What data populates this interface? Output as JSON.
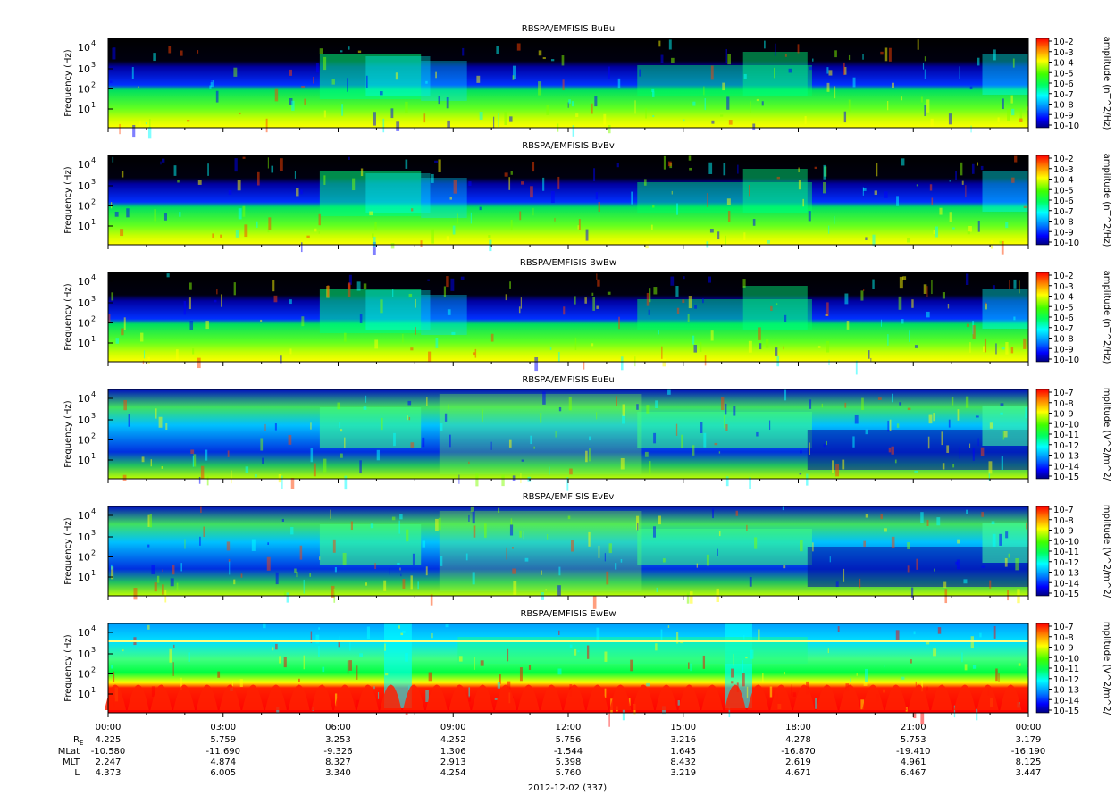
{
  "chart_data": {
    "type": "heatmap",
    "date_label": "2012-12-02 (337)",
    "x_ticks": [
      "00:00",
      "03:00",
      "06:00",
      "09:00",
      "12:00",
      "15:00",
      "18:00",
      "21:00",
      "00:00"
    ],
    "ephemeris": {
      "rows": [
        {
          "label": "R",
          "label_sub": "E",
          "values": [
            "4.225",
            "5.759",
            "3.253",
            "4.252",
            "5.756",
            "3.216",
            "4.278",
            "5.753",
            "3.179"
          ]
        },
        {
          "label": "MLat",
          "label_sub": "",
          "values": [
            "-10.580",
            "-11.690",
            "-9.326",
            "1.306",
            "-1.544",
            "1.645",
            "-16.870",
            "-19.410",
            "-16.190"
          ]
        },
        {
          "label": "MLT",
          "label_sub": "",
          "values": [
            "2.247",
            "4.874",
            "8.327",
            "2.913",
            "5.398",
            "8.432",
            "2.619",
            "4.961",
            "8.125"
          ]
        },
        {
          "label": "L",
          "label_sub": "",
          "values": [
            "4.373",
            "6.005",
            "3.340",
            "4.254",
            "5.760",
            "3.219",
            "4.671",
            "6.467",
            "3.447"
          ]
        }
      ]
    },
    "panels": [
      {
        "title": "RBSPA/EMFISIS  BuBu",
        "ylabel": "Frequency (Hz)",
        "y_ticks": [
          {
            "base": "10",
            "exp": "1"
          },
          {
            "base": "10",
            "exp": "2"
          },
          {
            "base": "10",
            "exp": "3"
          },
          {
            "base": "10",
            "exp": "4"
          }
        ],
        "cbar_label": "amplitude (nT^2/Hz)",
        "cbar_ticks": [
          "10-2",
          "10-3",
          "10-4",
          "10-5",
          "10-6",
          "10-7",
          "10-8",
          "10-9",
          "10-10"
        ]
      },
      {
        "title": "RBSPA/EMFISIS  BvBv",
        "ylabel": "Frequency (Hz)",
        "y_ticks": [
          {
            "base": "10",
            "exp": "1"
          },
          {
            "base": "10",
            "exp": "2"
          },
          {
            "base": "10",
            "exp": "3"
          },
          {
            "base": "10",
            "exp": "4"
          }
        ],
        "cbar_label": "amplitude (nT^2/Hz)",
        "cbar_ticks": [
          "10-2",
          "10-3",
          "10-4",
          "10-5",
          "10-6",
          "10-7",
          "10-8",
          "10-9",
          "10-10"
        ]
      },
      {
        "title": "RBSPA/EMFISIS  BwBw",
        "ylabel": "Frequency (Hz)",
        "y_ticks": [
          {
            "base": "10",
            "exp": "1"
          },
          {
            "base": "10",
            "exp": "2"
          },
          {
            "base": "10",
            "exp": "3"
          },
          {
            "base": "10",
            "exp": "4"
          }
        ],
        "cbar_label": "amplitude (nT^2/Hz)",
        "cbar_ticks": [
          "10-2",
          "10-3",
          "10-4",
          "10-5",
          "10-6",
          "10-7",
          "10-8",
          "10-9",
          "10-10"
        ]
      },
      {
        "title": "RBSPA/EMFISIS  EuEu",
        "ylabel": "Frequency (Hz)",
        "y_ticks": [
          {
            "base": "10",
            "exp": "1"
          },
          {
            "base": "10",
            "exp": "2"
          },
          {
            "base": "10",
            "exp": "3"
          },
          {
            "base": "10",
            "exp": "4"
          }
        ],
        "cbar_label": "mplitude (V^2/m^2/",
        "cbar_ticks": [
          "10-7",
          "10-8",
          "10-9",
          "10-10",
          "10-11",
          "10-12",
          "10-13",
          "10-14",
          "10-15"
        ]
      },
      {
        "title": "RBSPA/EMFISIS  EvEv",
        "ylabel": "Frequency (Hz)",
        "y_ticks": [
          {
            "base": "10",
            "exp": "1"
          },
          {
            "base": "10",
            "exp": "2"
          },
          {
            "base": "10",
            "exp": "3"
          },
          {
            "base": "10",
            "exp": "4"
          }
        ],
        "cbar_label": "mplitude (V^2/m^2/",
        "cbar_ticks": [
          "10-7",
          "10-8",
          "10-9",
          "10-10",
          "10-11",
          "10-12",
          "10-13",
          "10-14",
          "10-15"
        ]
      },
      {
        "title": "RBSPA/EMFISIS  EwEw",
        "ylabel": "Frequency (Hz)",
        "y_ticks": [
          {
            "base": "10",
            "exp": "1"
          },
          {
            "base": "10",
            "exp": "2"
          },
          {
            "base": "10",
            "exp": "3"
          },
          {
            "base": "10",
            "exp": "4"
          }
        ],
        "cbar_label": "mplitude (V^2/m^2/",
        "cbar_ticks": [
          "10-7",
          "10-8",
          "10-9",
          "10-10",
          "10-11",
          "10-12",
          "10-13",
          "10-14",
          "10-15"
        ]
      }
    ],
    "colormap": [
      "#ff0000",
      "#ff8000",
      "#ffff00",
      "#80ff00",
      "#00ff00",
      "#00ff80",
      "#00ffff",
      "#0080ff",
      "#0000ff",
      "#000080"
    ]
  }
}
